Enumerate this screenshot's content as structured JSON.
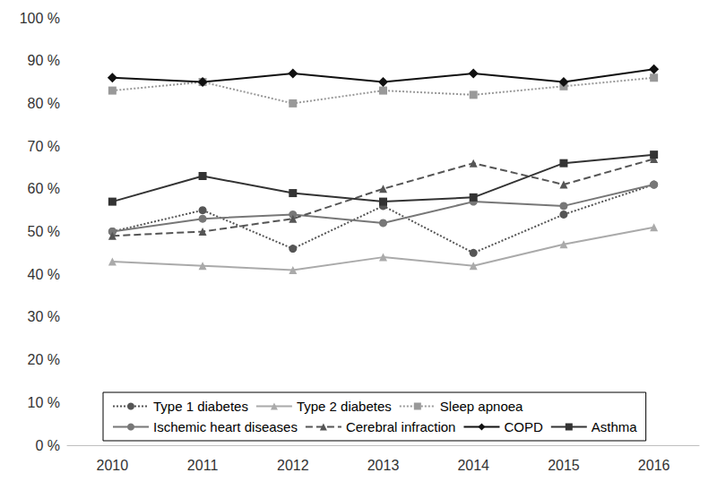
{
  "chart_data": {
    "type": "line",
    "categories": [
      "2010",
      "2011",
      "2012",
      "2013",
      "2014",
      "2015",
      "2016"
    ],
    "ylim": [
      0,
      100
    ],
    "yticks": [
      {
        "value": 0,
        "label": "0 %"
      },
      {
        "value": 10,
        "label": "10 %"
      },
      {
        "value": 20,
        "label": "20 %"
      },
      {
        "value": 30,
        "label": "30 %"
      },
      {
        "value": 40,
        "label": "40 %"
      },
      {
        "value": 50,
        "label": "50 %"
      },
      {
        "value": 60,
        "label": "60 %"
      },
      {
        "value": 70,
        "label": "70 %"
      },
      {
        "value": 80,
        "label": "80 %"
      },
      {
        "value": 90,
        "label": "90 %"
      },
      {
        "value": 100,
        "label": "100 %"
      }
    ],
    "grid": false,
    "legend": "bottom left",
    "series": [
      {
        "name": "Type 1 diabetes",
        "color": "#555555",
        "marker": "circle",
        "line_style": "dotted",
        "values": [
          50,
          55,
          46,
          56,
          45,
          54,
          61
        ]
      },
      {
        "name": "Type 2 diabetes",
        "color": "#aaaaaa",
        "marker": "triangle",
        "line_style": "solid",
        "values": [
          43,
          42,
          41,
          44,
          42,
          47,
          51
        ]
      },
      {
        "name": "Sleep apnoea",
        "color": "#999999",
        "marker": "rect",
        "line_style": "dotted",
        "values": [
          83,
          85,
          80,
          83,
          82,
          84,
          86
        ]
      },
      {
        "name": "Ischemic heart diseases",
        "color": "#777777",
        "marker": "circle",
        "line_style": "solid",
        "values": [
          50,
          53,
          54,
          52,
          57,
          56,
          61
        ]
      },
      {
        "name": "Cerebral infraction",
        "color": "#555555",
        "marker": "triangle",
        "line_style": "dashed",
        "values": [
          49,
          50,
          53,
          60,
          66,
          61,
          67
        ]
      },
      {
        "name": "COPD",
        "color": "#111111",
        "marker": "diamond",
        "line_style": "solid",
        "values": [
          86,
          85,
          87,
          85,
          87,
          85,
          88
        ]
      },
      {
        "name": "Asthma",
        "color": "#333333",
        "marker": "rect",
        "line_style": "solid",
        "values": [
          57,
          63,
          59,
          57,
          58,
          66,
          68
        ]
      }
    ]
  }
}
